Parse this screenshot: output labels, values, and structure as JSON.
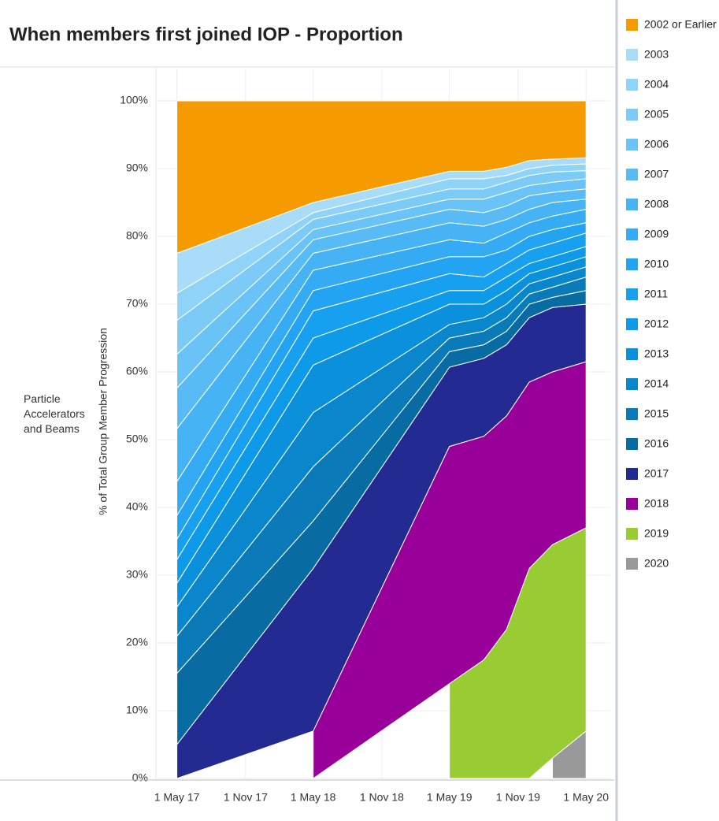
{
  "chart_data": {
    "type": "stacked-area",
    "title": "When members first joined IOP - Proportion",
    "row_label": "Particle Accelerators and Beams",
    "y_label": "% of Total Group Member Progression",
    "x": [
      "2017-05-01",
      "2018-05-01",
      "2019-05-01",
      "2019-08-01",
      "2019-10-01",
      "2019-12-01",
      "2020-02-01",
      "2020-05-01"
    ],
    "xlim": [
      "2017-03-10",
      "2020-07-05"
    ],
    "xticks": [
      {
        "value": "2017-05-01",
        "label": "1 May 17"
      },
      {
        "value": "2017-11-01",
        "label": "1 Nov 17"
      },
      {
        "value": "2018-05-01",
        "label": "1 May 18"
      },
      {
        "value": "2018-11-01",
        "label": "1 Nov 18"
      },
      {
        "value": "2019-05-01",
        "label": "1 May 19"
      },
      {
        "value": "2019-11-01",
        "label": "1 Nov 19"
      },
      {
        "value": "2020-05-01",
        "label": "1 May 20"
      }
    ],
    "ylim": [
      0,
      100
    ],
    "yticks": [
      {
        "value": 0,
        "label": "0%"
      },
      {
        "value": 10,
        "label": "10%"
      },
      {
        "value": 20,
        "label": "20%"
      },
      {
        "value": 30,
        "label": "30%"
      },
      {
        "value": 40,
        "label": "40%"
      },
      {
        "value": 50,
        "label": "50%"
      },
      {
        "value": 60,
        "label": "60%"
      },
      {
        "value": 70,
        "label": "70%"
      },
      {
        "value": 80,
        "label": "80%"
      },
      {
        "value": 90,
        "label": "90%"
      },
      {
        "value": 100,
        "label": "100%"
      }
    ],
    "grid": true,
    "legend": "right",
    "series": [
      {
        "name": "2002 or Earlier",
        "color": "#f59b00",
        "values": [
          22.5,
          15,
          10.4,
          10.4,
          9.8,
          8.8,
          8.6,
          8.4
        ]
      },
      {
        "name": "2003",
        "color": "#a8dcf8",
        "values": [
          5.9,
          1.5,
          1.1,
          1.1,
          1.2,
          1.2,
          0.9,
          0.9
        ]
      },
      {
        "name": "2004",
        "color": "#8fd3f8",
        "values": [
          4,
          1,
          1.5,
          1.5,
          1,
          1,
          1,
          1
        ]
      },
      {
        "name": "2005",
        "color": "#7ccbf7",
        "values": [
          5,
          1.5,
          1.5,
          1.5,
          1.5,
          1.5,
          1.5,
          1.2
        ]
      },
      {
        "name": "2006",
        "color": "#6ac3f6",
        "values": [
          5,
          1.5,
          1.5,
          2,
          2,
          1.5,
          1.5,
          1.5
        ]
      },
      {
        "name": "2007",
        "color": "#58bbf5",
        "values": [
          6,
          2,
          2,
          2,
          2,
          2,
          1.5,
          1.5
        ]
      },
      {
        "name": "2008",
        "color": "#45b3f4",
        "values": [
          7.8,
          2.5,
          2.5,
          2.5,
          2,
          2,
          2,
          1.5
        ]
      },
      {
        "name": "2009",
        "color": "#34abf3",
        "values": [
          5,
          3,
          2.5,
          2,
          2.5,
          2,
          2,
          2
        ]
      },
      {
        "name": "2010",
        "color": "#22a4f2",
        "values": [
          3.5,
          3,
          2.5,
          3,
          2,
          2,
          2,
          1.5
        ]
      },
      {
        "name": "2011",
        "color": "#17a0ef",
        "values": [
          3,
          4,
          2.5,
          2,
          2,
          2,
          2,
          2
        ]
      },
      {
        "name": "2012",
        "color": "#0d9ae8",
        "values": [
          3.5,
          4,
          2,
          2,
          2,
          1.5,
          1.5,
          1.5
        ]
      },
      {
        "name": "2013",
        "color": "#0b91dc",
        "values": [
          3.5,
          7,
          3,
          2,
          2,
          1.5,
          1.5,
          1.5
        ]
      },
      {
        "name": "2014",
        "color": "#0a86cc",
        "values": [
          4.3,
          8,
          2,
          2,
          2,
          1.5,
          1.5,
          1.5
        ]
      },
      {
        "name": "2015",
        "color": "#0a7ab8",
        "values": [
          5.5,
          8,
          2,
          2,
          2,
          1.5,
          1.5,
          2
        ]
      },
      {
        "name": "2016",
        "color": "#086ca3",
        "values": [
          10.5,
          7,
          2.3,
          2,
          2,
          2,
          1.5,
          2
        ]
      },
      {
        "name": "2017",
        "color": "#232a92",
        "values": [
          5,
          24,
          11.7,
          11.5,
          10.5,
          9.5,
          9.5,
          8.5
        ]
      },
      {
        "name": "2018",
        "color": "#990099",
        "values": [
          null,
          7,
          35,
          33,
          31.5,
          27.5,
          25.5,
          24.5
        ]
      },
      {
        "name": "2019",
        "color": "#99cc33",
        "values": [
          null,
          null,
          14,
          17.5,
          22,
          31,
          31.5,
          30
        ]
      },
      {
        "name": "2020",
        "color": "#999999",
        "values": [
          null,
          null,
          null,
          null,
          null,
          null,
          3,
          7
        ]
      }
    ]
  }
}
